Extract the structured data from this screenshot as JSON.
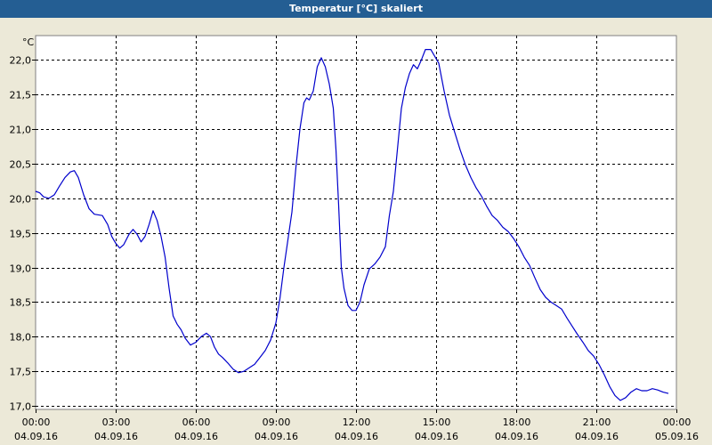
{
  "window": {
    "title": "Temperatur [°C] skaliert"
  },
  "colors": {
    "title_bar": "#245e93",
    "plot_background": "#ffffff",
    "line": "#0000cc",
    "grid": "#000000"
  },
  "chart_data": {
    "type": "line",
    "title": "Temperatur [°C] skaliert",
    "ylabel": "°C",
    "xlabel": "",
    "grid": true,
    "ylim": [
      16.95,
      22.35
    ],
    "xlim": [
      0,
      24
    ],
    "yticks": [
      {
        "value": 17.0,
        "label": "17,0"
      },
      {
        "value": 17.5,
        "label": "17,5"
      },
      {
        "value": 18.0,
        "label": "18,0"
      },
      {
        "value": 18.5,
        "label": "18,5"
      },
      {
        "value": 19.0,
        "label": "19,0"
      },
      {
        "value": 19.5,
        "label": "19,5"
      },
      {
        "value": 20.0,
        "label": "20,0"
      },
      {
        "value": 20.5,
        "label": "20,5"
      },
      {
        "value": 21.0,
        "label": "21,0"
      },
      {
        "value": 21.5,
        "label": "21,5"
      },
      {
        "value": 22.0,
        "label": "22,0"
      }
    ],
    "xticks": [
      {
        "value": 0,
        "time": "00:00",
        "date": "04.09.16"
      },
      {
        "value": 3,
        "time": "03:00",
        "date": "04.09.16"
      },
      {
        "value": 6,
        "time": "06:00",
        "date": "04.09.16"
      },
      {
        "value": 9,
        "time": "09:00",
        "date": "04.09.16"
      },
      {
        "value": 12,
        "time": "12:00",
        "date": "04.09.16"
      },
      {
        "value": 15,
        "time": "15:00",
        "date": "04.09.16"
      },
      {
        "value": 18,
        "time": "18:00",
        "date": "04.09.16"
      },
      {
        "value": 21,
        "time": "21:00",
        "date": "04.09.16"
      },
      {
        "value": 24,
        "time": "00:00",
        "date": "05.09.16"
      }
    ],
    "series": [
      {
        "points": [
          [
            0.0,
            20.1
          ],
          [
            0.15,
            20.08
          ],
          [
            0.3,
            20.02
          ],
          [
            0.5,
            20.0
          ],
          [
            0.7,
            20.05
          ],
          [
            0.9,
            20.18
          ],
          [
            1.1,
            20.3
          ],
          [
            1.3,
            20.38
          ],
          [
            1.45,
            20.4
          ],
          [
            1.6,
            20.3
          ],
          [
            1.8,
            20.05
          ],
          [
            2.0,
            19.85
          ],
          [
            2.2,
            19.77
          ],
          [
            2.5,
            19.75
          ],
          [
            2.7,
            19.62
          ],
          [
            2.85,
            19.45
          ],
          [
            3.0,
            19.35
          ],
          [
            3.15,
            19.28
          ],
          [
            3.3,
            19.33
          ],
          [
            3.5,
            19.48
          ],
          [
            3.65,
            19.55
          ],
          [
            3.8,
            19.48
          ],
          [
            3.95,
            19.37
          ],
          [
            4.1,
            19.45
          ],
          [
            4.25,
            19.62
          ],
          [
            4.4,
            19.82
          ],
          [
            4.55,
            19.68
          ],
          [
            4.7,
            19.45
          ],
          [
            4.85,
            19.15
          ],
          [
            5.0,
            18.7
          ],
          [
            5.15,
            18.3
          ],
          [
            5.3,
            18.18
          ],
          [
            5.45,
            18.1
          ],
          [
            5.6,
            17.98
          ],
          [
            5.8,
            17.88
          ],
          [
            6.0,
            17.92
          ],
          [
            6.2,
            18.0
          ],
          [
            6.4,
            18.05
          ],
          [
            6.55,
            18.0
          ],
          [
            6.7,
            17.85
          ],
          [
            6.85,
            17.75
          ],
          [
            7.0,
            17.7
          ],
          [
            7.2,
            17.62
          ],
          [
            7.4,
            17.53
          ],
          [
            7.6,
            17.48
          ],
          [
            7.8,
            17.5
          ],
          [
            8.0,
            17.55
          ],
          [
            8.2,
            17.6
          ],
          [
            8.4,
            17.7
          ],
          [
            8.6,
            17.8
          ],
          [
            8.8,
            17.95
          ],
          [
            9.0,
            18.2
          ],
          [
            9.15,
            18.55
          ],
          [
            9.3,
            19.0
          ],
          [
            9.45,
            19.4
          ],
          [
            9.6,
            19.8
          ],
          [
            9.75,
            20.45
          ],
          [
            9.9,
            21.0
          ],
          [
            10.05,
            21.38
          ],
          [
            10.15,
            21.45
          ],
          [
            10.25,
            21.42
          ],
          [
            10.4,
            21.55
          ],
          [
            10.55,
            21.9
          ],
          [
            10.7,
            22.03
          ],
          [
            10.85,
            21.9
          ],
          [
            11.0,
            21.65
          ],
          [
            11.15,
            21.3
          ],
          [
            11.25,
            20.7
          ],
          [
            11.35,
            19.9
          ],
          [
            11.45,
            19.0
          ],
          [
            11.55,
            18.7
          ],
          [
            11.7,
            18.45
          ],
          [
            11.85,
            18.38
          ],
          [
            12.0,
            18.38
          ],
          [
            12.15,
            18.5
          ],
          [
            12.3,
            18.75
          ],
          [
            12.5,
            18.98
          ],
          [
            12.7,
            19.05
          ],
          [
            12.9,
            19.15
          ],
          [
            13.1,
            19.3
          ],
          [
            13.25,
            19.75
          ],
          [
            13.4,
            20.1
          ],
          [
            13.55,
            20.7
          ],
          [
            13.7,
            21.3
          ],
          [
            13.85,
            21.6
          ],
          [
            14.0,
            21.8
          ],
          [
            14.15,
            21.93
          ],
          [
            14.3,
            21.87
          ],
          [
            14.45,
            22.0
          ],
          [
            14.6,
            22.15
          ],
          [
            14.8,
            22.15
          ],
          [
            14.95,
            22.05
          ],
          [
            15.1,
            21.95
          ],
          [
            15.3,
            21.55
          ],
          [
            15.5,
            21.2
          ],
          [
            15.7,
            20.95
          ],
          [
            15.9,
            20.7
          ],
          [
            16.1,
            20.48
          ],
          [
            16.3,
            20.3
          ],
          [
            16.5,
            20.15
          ],
          [
            16.7,
            20.03
          ],
          [
            16.9,
            19.88
          ],
          [
            17.1,
            19.75
          ],
          [
            17.3,
            19.68
          ],
          [
            17.5,
            19.58
          ],
          [
            17.7,
            19.52
          ],
          [
            17.9,
            19.42
          ],
          [
            18.1,
            19.3
          ],
          [
            18.3,
            19.15
          ],
          [
            18.5,
            19.03
          ],
          [
            18.7,
            18.85
          ],
          [
            18.9,
            18.68
          ],
          [
            19.1,
            18.57
          ],
          [
            19.3,
            18.5
          ],
          [
            19.5,
            18.45
          ],
          [
            19.7,
            18.4
          ],
          [
            19.9,
            18.27
          ],
          [
            20.1,
            18.15
          ],
          [
            20.3,
            18.03
          ],
          [
            20.5,
            17.92
          ],
          [
            20.7,
            17.8
          ],
          [
            20.9,
            17.72
          ],
          [
            21.1,
            17.6
          ],
          [
            21.3,
            17.45
          ],
          [
            21.5,
            17.28
          ],
          [
            21.7,
            17.15
          ],
          [
            21.9,
            17.08
          ],
          [
            22.1,
            17.12
          ],
          [
            22.3,
            17.2
          ],
          [
            22.5,
            17.25
          ],
          [
            22.7,
            17.22
          ],
          [
            22.9,
            17.22
          ],
          [
            23.1,
            17.25
          ],
          [
            23.3,
            17.23
          ],
          [
            23.5,
            17.2
          ],
          [
            23.7,
            17.18
          ]
        ]
      }
    ]
  }
}
